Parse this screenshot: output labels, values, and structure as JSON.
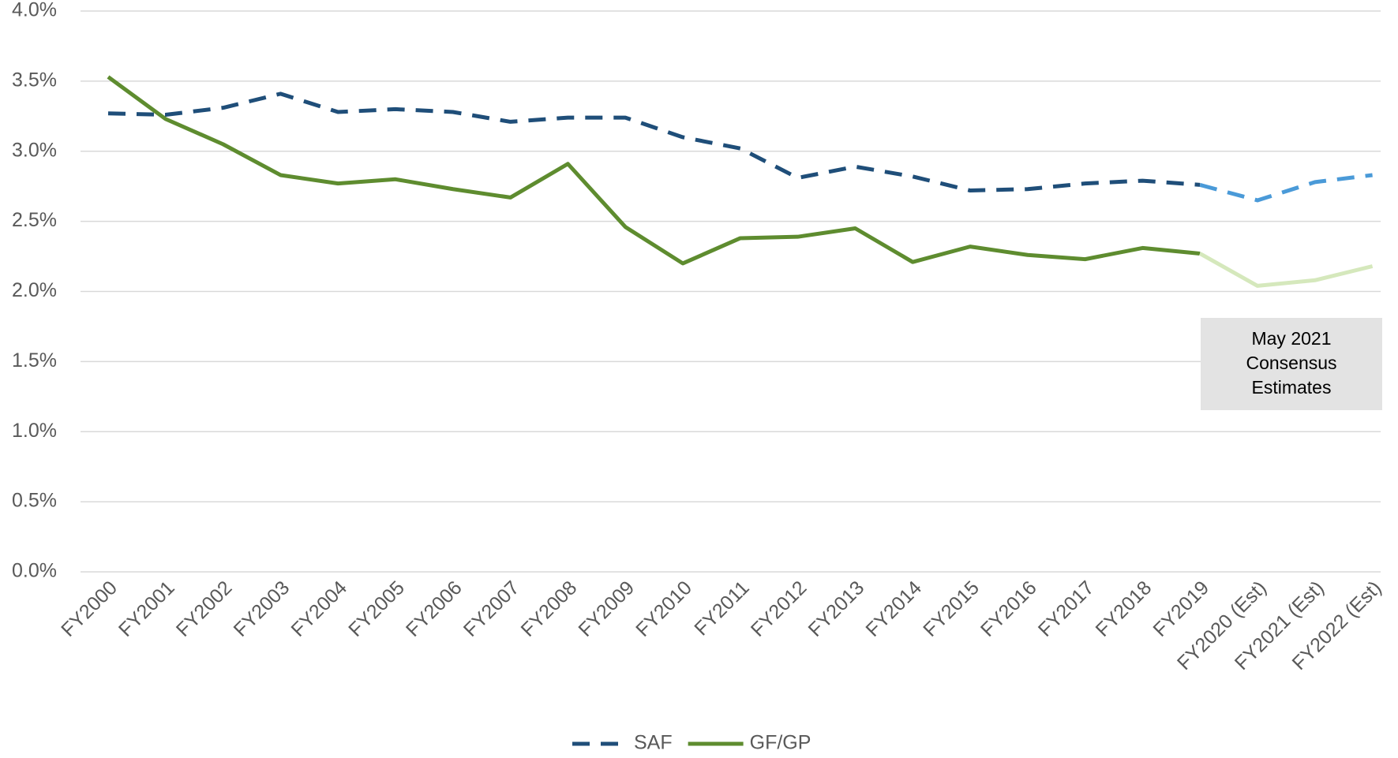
{
  "chart_data": {
    "type": "line",
    "categories": [
      "FY2000",
      "FY2001",
      "FY2002",
      "FY2003",
      "FY2004",
      "FY2005",
      "FY2006",
      "FY2007",
      "FY2008",
      "FY2009",
      "FY2010",
      "FY2011",
      "FY2012",
      "FY2013",
      "FY2014",
      "FY2015",
      "FY2016",
      "FY2017",
      "FY2018",
      "FY2019",
      "FY2020 (Est)",
      "FY2021 (Est)",
      "FY2022 (Est)"
    ],
    "series": [
      {
        "name": "SAF",
        "color": "#1f4e79",
        "estimate_color": "#4a9ad8",
        "dashed": true,
        "values": [
          3.27,
          3.26,
          3.31,
          3.41,
          3.28,
          3.3,
          3.28,
          3.21,
          3.24,
          3.24,
          3.1,
          3.02,
          2.81,
          2.89,
          2.82,
          2.72,
          2.73,
          2.77,
          2.79,
          2.76,
          2.65,
          2.78,
          2.83
        ]
      },
      {
        "name": "GF/GP",
        "color": "#5e8c2f",
        "estimate_color": "#d5e8bc",
        "dashed": false,
        "values": [
          3.53,
          3.23,
          3.05,
          2.83,
          2.77,
          2.8,
          2.73,
          2.67,
          2.91,
          2.46,
          2.2,
          2.38,
          2.39,
          2.45,
          2.21,
          2.32,
          2.26,
          2.23,
          2.31,
          2.27,
          2.04,
          2.08,
          2.18
        ]
      }
    ],
    "estimate_index": 19,
    "ylim": [
      0,
      4
    ],
    "yticks": [
      {
        "value": 0,
        "label": "0.0%"
      },
      {
        "value": 0.5,
        "label": "0.5%"
      },
      {
        "value": 1,
        "label": "1.0%"
      },
      {
        "value": 1.5,
        "label": "1.5%"
      },
      {
        "value": 2,
        "label": "2.0%"
      },
      {
        "value": 2.5,
        "label": "2.5%"
      },
      {
        "value": 3,
        "label": "3.0%"
      },
      {
        "value": 3.5,
        "label": "3.5%"
      },
      {
        "value": 4,
        "label": "4.0%"
      }
    ],
    "grid": true,
    "legend": "bottom",
    "annotation": {
      "lines": [
        "May 2021",
        "Consensus",
        "Estimates"
      ]
    }
  }
}
